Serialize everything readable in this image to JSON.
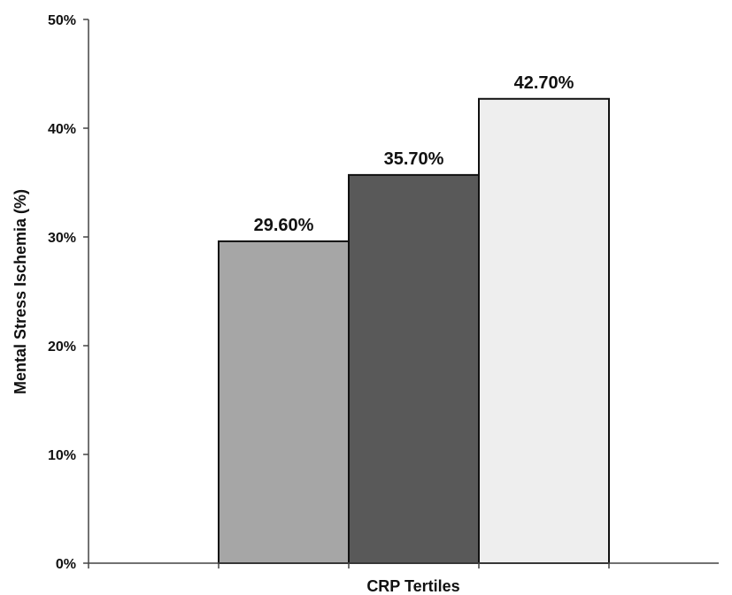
{
  "chart_data": {
    "type": "bar",
    "xlabel": "CRP Tertiles",
    "ylabel": "Mental Stress Ischemia (%)",
    "ylim": [
      0,
      50
    ],
    "yticks": [
      0,
      10,
      20,
      30,
      40,
      50
    ],
    "ytick_labels": [
      "0%",
      "10%",
      "20%",
      "30%",
      "40%",
      "50%"
    ],
    "grid": false,
    "legend": "none",
    "categories": [
      "",
      "",
      ""
    ],
    "values": [
      29.6,
      35.7,
      42.7
    ],
    "data_labels": [
      "29.60%",
      "35.70%",
      "42.70%"
    ],
    "bar_colors": [
      "#a6a6a6",
      "#595959",
      "#eeeeee"
    ],
    "bar_edge_color": "#111111"
  }
}
